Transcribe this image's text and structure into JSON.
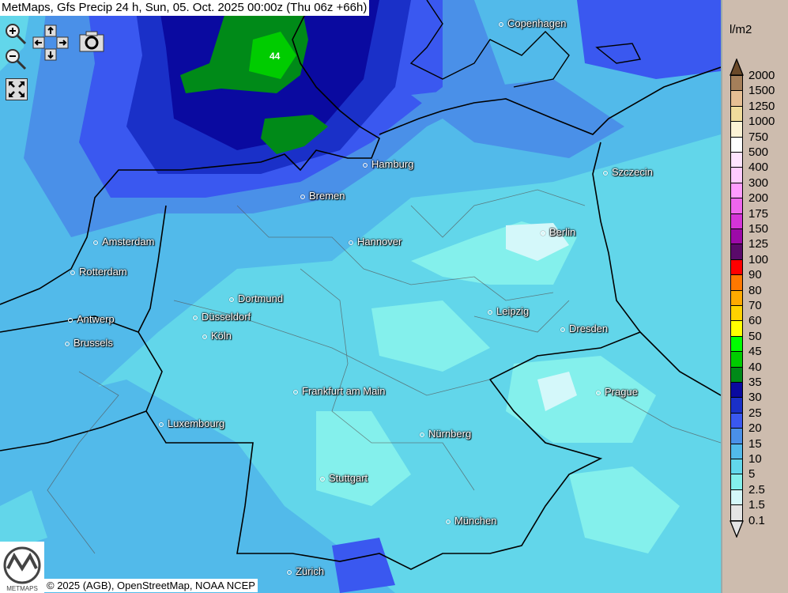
{
  "title": "MetMaps, Gfs Precip 24 h, Sun, 05. Oct. 2025 00:00z (Thu 06z +66h)",
  "controls": {
    "zoom_in": "zoom-in-icon",
    "zoom_out": "zoom-out-icon",
    "pan": "pan-arrows-icon",
    "screenshot": "camera-icon",
    "fullscreen": "fullscreen-icon"
  },
  "map_value_label": "44",
  "cities": [
    "Copenhagen",
    "Hamburg",
    "Szczecin",
    "Bremen",
    "Amsterdam",
    "Hannover",
    "Berlin",
    "Rotterdam",
    "Dortmund",
    "Antwerp",
    "Düsseldorf",
    "Leipzig",
    "Dresden",
    "Brussels",
    "Köln",
    "Frankfurt am Main",
    "Prague",
    "Luxembourg",
    "Nürnberg",
    "Stuttgart",
    "München",
    "Zürich"
  ],
  "copyright": "© 2025 (AGB), OpenStreetMap, NOAA NCEP",
  "logo_text": "METMAPS",
  "legend": {
    "unit": "l/m2",
    "labels": [
      "2000",
      "1500",
      "1250",
      "1000",
      "750",
      "500",
      "400",
      "300",
      "200",
      "175",
      "150",
      "125",
      "100",
      "90",
      "80",
      "70",
      "60",
      "50",
      "45",
      "40",
      "35",
      "30",
      "25",
      "20",
      "15",
      "10",
      "5",
      "2.5",
      "1.5",
      "0.1"
    ],
    "over_color": "#6b4a2a",
    "under_color": "#e4e4e4",
    "colors": [
      "#a57f5a",
      "#e6bf94",
      "#f0dc9c",
      "#fcf3d6",
      "#ffffff",
      "#ffe4ff",
      "#ffccff",
      "#ff9cff",
      "#ee66ee",
      "#d434d8",
      "#9c0aa8",
      "#5a0a6a",
      "#ff0000",
      "#ff7800",
      "#ffaa00",
      "#ffd200",
      "#ffff00",
      "#00ff00",
      "#00cc00",
      "#008a18",
      "#0a0aa0",
      "#1a30c8",
      "#3a58f0",
      "#4a90e8",
      "#52baea",
      "#62d8ec",
      "#84f0ec",
      "#d4f8fa",
      "#e4e4e4"
    ]
  }
}
